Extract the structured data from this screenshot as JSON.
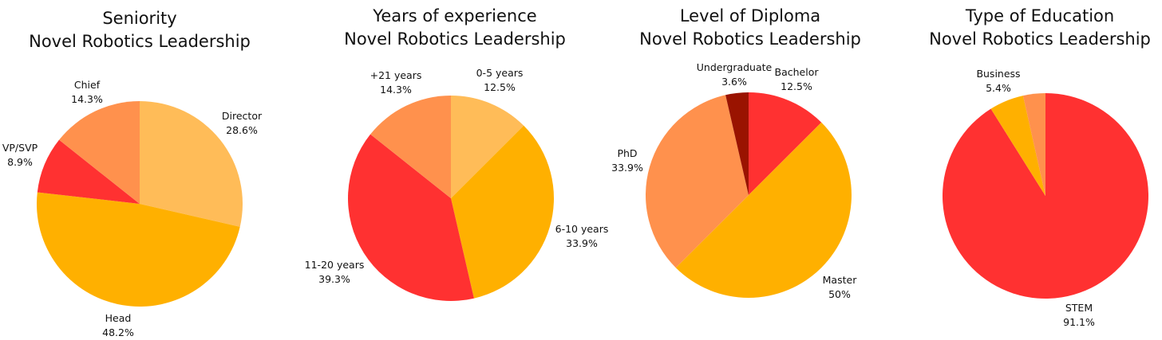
{
  "colors": {
    "light_orange": "#FFBC58",
    "orange": "#FF914D",
    "red": "#FF3131",
    "amber": "#FFB000",
    "dark_red": "#9A1300"
  },
  "chart_data": [
    {
      "type": "pie",
      "title_line1": "Seniority",
      "title_line2": "Novel Robotics Leadership",
      "slices": [
        {
          "label": "Director",
          "value": 28.6,
          "display": "28.6%",
          "color": "#FFBC58"
        },
        {
          "label": "Head",
          "value": 48.2,
          "display": "48.2%",
          "color": "#FFB000"
        },
        {
          "label": "VP/SVP",
          "value": 8.9,
          "display": "8.9%",
          "color": "#FF3131"
        },
        {
          "label": "Chief",
          "value": 14.3,
          "display": "14.3%",
          "color": "#FF914D"
        }
      ]
    },
    {
      "type": "pie",
      "title_line1": "Years of experience",
      "title_line2": "Novel Robotics Leadership",
      "slices": [
        {
          "label": "0-5 years",
          "value": 12.5,
          "display": "12.5%",
          "color": "#FFBC58"
        },
        {
          "label": "6-10 years",
          "value": 33.9,
          "display": "33.9%",
          "color": "#FFB000"
        },
        {
          "label": "11-20 years",
          "value": 39.3,
          "display": "39.3%",
          "color": "#FF3131"
        },
        {
          "label": "+21 years",
          "value": 14.3,
          "display": "14.3%",
          "color": "#FF914D"
        }
      ]
    },
    {
      "type": "pie",
      "title_line1": "Level of Diploma",
      "title_line2": "Novel Robotics Leadership",
      "slices": [
        {
          "label": "Bachelor",
          "value": 12.5,
          "display": "12.5%",
          "color": "#FF3131"
        },
        {
          "label": "Master",
          "value": 50,
          "display": "50%",
          "color": "#FFB000"
        },
        {
          "label": "PhD",
          "value": 33.9,
          "display": "33.9%",
          "color": "#FF914D"
        },
        {
          "label": "Undergraduate",
          "value": 3.6,
          "display": "3.6%",
          "color": "#9A1300"
        }
      ]
    },
    {
      "type": "pie",
      "title_line1": "Type of Education",
      "title_line2": "Novel Robotics Leadership",
      "slices": [
        {
          "label": "STEM",
          "value": 91.1,
          "display": "91.1%",
          "color": "#FF3131"
        },
        {
          "label": "Business",
          "value": 5.4,
          "display": "5.4%",
          "color": "#FFB000"
        },
        {
          "label": "",
          "value": 3.5,
          "display": "",
          "color": "#FF914D"
        }
      ]
    }
  ]
}
